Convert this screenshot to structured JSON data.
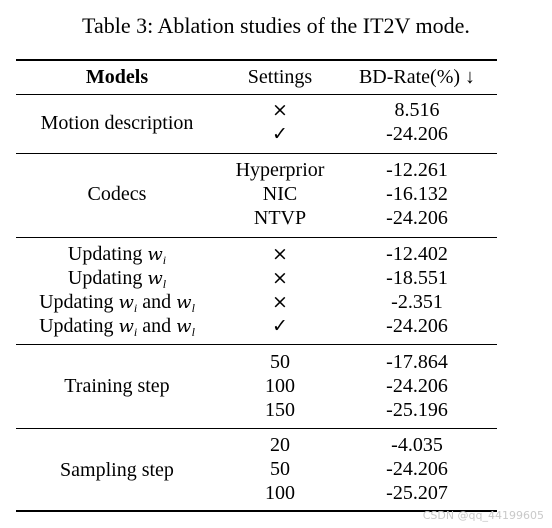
{
  "caption": "Table 3: Ablation studies of the IT2V mode.",
  "header": {
    "col1": "Models",
    "col2": "Settings",
    "col3": "BD-Rate(%) ↓"
  },
  "sections": [
    {
      "model": "Motion description",
      "rows": [
        {
          "setting": "×",
          "value": "8.516"
        },
        {
          "setting": "✓",
          "value": "-24.206"
        }
      ]
    },
    {
      "model": "Codecs",
      "rows": [
        {
          "setting": "Hyperprior",
          "value": "-12.261"
        },
        {
          "setting": "NIC",
          "value": "-16.132"
        },
        {
          "setting": "NTVP",
          "value": "-24.206"
        }
      ]
    },
    {
      "updating": {
        "word": "Updating",
        "var_w": "w",
        "sub_i": "i",
        "sub_l": "l",
        "and": "and"
      },
      "rows": [
        {
          "setting": "×",
          "value": "-12.402"
        },
        {
          "setting": "×",
          "value": "-18.551"
        },
        {
          "setting": "×",
          "value": "-2.351"
        },
        {
          "setting": "✓",
          "value": "-24.206"
        }
      ]
    },
    {
      "model": "Training step",
      "rows": [
        {
          "setting": "50",
          "value": "-17.864"
        },
        {
          "setting": "100",
          "value": "-24.206"
        },
        {
          "setting": "150",
          "value": "-25.196"
        }
      ]
    },
    {
      "model": "Sampling step",
      "rows": [
        {
          "setting": "20",
          "value": "-4.035"
        },
        {
          "setting": "50",
          "value": "-24.206"
        },
        {
          "setting": "100",
          "value": "-25.207"
        }
      ]
    }
  ],
  "watermark": "CSDN @qq_44199605"
}
